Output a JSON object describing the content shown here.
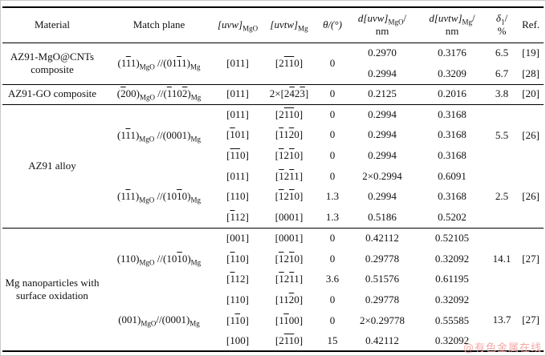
{
  "header": {
    "material": "Material",
    "match_plane": "Match plane",
    "uvw_bracket": "[uvw]",
    "uvw_sub": "MgO",
    "uvtw_bracket": "[uvtw]",
    "uvtw_sub": "Mg",
    "theta": "θ/(°)",
    "d_uvw": "d[uvw]",
    "d_uvw_sub": "MgO",
    "d_uvw_slash": "/",
    "d_uvw_unit": "nm",
    "d_uvtw": "d[uvtw]",
    "d_uvtw_sub": "Mg",
    "d_uvtw_slash": "/",
    "d_uvtw_unit": "nm",
    "delta": "δ",
    "delta_sub": "1",
    "delta_slash": "/",
    "delta_unit": "%",
    "ref": "Ref."
  },
  "sections": [
    {
      "material": "AZ91-MgO@CNTs composite",
      "groups": [
        {
          "span": {
            "match": [
              {
                "t": "(1"
              },
              {
                "o": "1"
              },
              {
                "t": "1)"
              },
              {
                "sub": "MgO"
              },
              {
                "t": " //(01"
              },
              {
                "o": "1"
              },
              {
                "t": "1)"
              },
              {
                "sub": "Mg"
              }
            ],
            "uvw": "[011]",
            "uvtw": [
              {
                "t": "[2"
              },
              {
                "o": "11"
              },
              {
                "t": "0]"
              }
            ],
            "theta": "0"
          },
          "rows": [
            {
              "d1": "0.2970",
              "d2": "0.3176",
              "delta": "6.5",
              "ref": "[19]"
            },
            {
              "d1": "0.2994",
              "d2": "0.3209",
              "delta": "6.7",
              "ref": "[28]"
            }
          ]
        }
      ]
    },
    {
      "material": "AZ91-GO composite",
      "groups": [
        {
          "span": {
            "match": [
              {
                "t": "("
              },
              {
                "o": "2"
              },
              {
                "t": "00)"
              },
              {
                "sub": "MgO"
              },
              {
                "t": " //("
              },
              {
                "o": "1"
              },
              {
                "t": "10"
              },
              {
                "o": "2"
              },
              {
                "t": ")"
              },
              {
                "sub": "Mg"
              }
            ]
          },
          "rows": [
            {
              "uvw": "[011]",
              "uvtw": [
                {
                  "t": "2×[2"
                },
                {
                  "o": "4"
                },
                {
                  "t": "2"
                },
                {
                  "o": "3"
                },
                {
                  "t": "]"
                }
              ],
              "theta": "0",
              "d1": "0.2125",
              "d2": "0.2016",
              "delta": "3.8",
              "ref": "[20]"
            }
          ]
        }
      ]
    },
    {
      "material": "AZ91 alloy",
      "groups": [
        {
          "span": {
            "match": [
              {
                "t": "(1"
              },
              {
                "o": "1"
              },
              {
                "t": "1)"
              },
              {
                "sub": "MgO"
              },
              {
                "t": " //(0001)"
              },
              {
                "sub": "Mg"
              }
            ],
            "delta": "5.5",
            "ref": "[26]"
          },
          "rows": [
            {
              "uvw": "[011]",
              "uvtw": [
                {
                  "t": "[2"
                },
                {
                  "o": "11"
                },
                {
                  "t": "0]"
                }
              ],
              "theta": "0",
              "d1": "0.2994",
              "d2": "0.3168"
            },
            {
              "uvw": [
                {
                  "t": "["
                },
                {
                  "o": "1"
                },
                {
                  "t": "01]"
                }
              ],
              "uvtw": [
                {
                  "t": "["
                },
                {
                  "o": "1"
                },
                {
                  "t": "1"
                },
                {
                  "o": "2"
                },
                {
                  "t": "0]"
                }
              ],
              "theta": "0",
              "d1": "0.2994",
              "d2": "0.3168"
            },
            {
              "uvw": [
                {
                  "t": "["
                },
                {
                  "o": "11"
                },
                {
                  "t": "0]"
                }
              ],
              "uvtw": [
                {
                  "t": "["
                },
                {
                  "o": "1"
                },
                {
                  "t": "2"
                },
                {
                  "o": "1"
                },
                {
                  "t": "0]"
                }
              ],
              "theta": "0",
              "d1": "0.2994",
              "d2": "0.3168"
            }
          ]
        },
        {
          "span": {
            "match": [
              {
                "t": "(1"
              },
              {
                "o": "1"
              },
              {
                "t": "1)"
              },
              {
                "sub": "MgO"
              },
              {
                "t": " //(10"
              },
              {
                "o": "1"
              },
              {
                "t": "0)"
              },
              {
                "sub": "Mg"
              }
            ],
            "delta": "2.5",
            "ref": "[26]"
          },
          "rows": [
            {
              "uvw": "[011]",
              "uvtw": [
                {
                  "t": "["
                },
                {
                  "o": "1"
                },
                {
                  "t": "2"
                },
                {
                  "o": "1"
                },
                {
                  "t": "1]"
                }
              ],
              "theta": "0",
              "d1": "2×0.2994",
              "d2": "0.6091"
            },
            {
              "uvw": "[110]",
              "uvtw": [
                {
                  "t": "["
                },
                {
                  "o": "1"
                },
                {
                  "t": "2"
                },
                {
                  "o": "1"
                },
                {
                  "t": "0]"
                }
              ],
              "theta": "1.3",
              "d1": "0.2994",
              "d2": "0.3168"
            },
            {
              "uvw": [
                {
                  "t": "["
                },
                {
                  "o": "1"
                },
                {
                  "t": "12]"
                }
              ],
              "uvtw": "[0001]",
              "theta": "1.3",
              "d1": "0.5186",
              "d2": "0.5202"
            }
          ]
        }
      ]
    },
    {
      "material": "Mg nanoparticles with surface oxidation",
      "groups": [
        {
          "span": {
            "match": [
              {
                "t": "(110)"
              },
              {
                "sub": "MgO"
              },
              {
                "t": " //(10"
              },
              {
                "o": "1"
              },
              {
                "t": "0)"
              },
              {
                "sub": "Mg"
              }
            ],
            "delta": "14.1",
            "ref": "[27]"
          },
          "rows": [
            {
              "uvw": "[001]",
              "uvtw": "[0001]",
              "theta": "0",
              "d1": "0.42112",
              "d2": "0.52105"
            },
            {
              "uvw": [
                {
                  "t": "["
                },
                {
                  "o": "1"
                },
                {
                  "t": "10]"
                }
              ],
              "uvtw": [
                {
                  "t": "["
                },
                {
                  "o": "1"
                },
                {
                  "t": "2"
                },
                {
                  "o": "1"
                },
                {
                  "t": "0]"
                }
              ],
              "theta": "0",
              "d1": "0.29778",
              "d2": "0.32092"
            },
            {
              "uvw": [
                {
                  "t": "["
                },
                {
                  "o": "1"
                },
                {
                  "t": "12]"
                }
              ],
              "uvtw": [
                {
                  "t": "["
                },
                {
                  "o": "1"
                },
                {
                  "t": "2"
                },
                {
                  "o": "1"
                },
                {
                  "t": "1]"
                }
              ],
              "theta": "3.6",
              "d1": "0.51576",
              "d2": "0.61195"
            }
          ]
        },
        {
          "span": {
            "match": [
              {
                "t": "(001)"
              },
              {
                "sub": "MgO"
              },
              {
                "t": "//(0001)"
              },
              {
                "sub": "Mg"
              }
            ],
            "delta": "13.7",
            "ref": "[27]"
          },
          "rows": [
            {
              "uvw": "[110]",
              "uvtw": [
                {
                  "t": "[11"
                },
                {
                  "o": "2"
                },
                {
                  "t": "0]"
                }
              ],
              "theta": "0",
              "d1": "0.29778",
              "d2": "0.32092"
            },
            {
              "uvw": [
                {
                  "t": "[1"
                },
                {
                  "o": "1"
                },
                {
                  "t": "0]"
                }
              ],
              "uvtw": [
                {
                  "t": "[1"
                },
                {
                  "o": "1"
                },
                {
                  "t": "00]"
                }
              ],
              "theta": "0",
              "d1": "2×0.29778",
              "d2": "0.55585"
            },
            {
              "uvw": "[100]",
              "uvtw": [
                {
                  "t": "[2"
                },
                {
                  "o": "11"
                },
                {
                  "t": "0]"
                }
              ],
              "theta": "15",
              "d1": "0.42112",
              "d2": "0.32092"
            }
          ]
        }
      ]
    }
  ],
  "watermark": {
    "text": "@有色金属在线",
    "color": "#f2aaa6"
  }
}
